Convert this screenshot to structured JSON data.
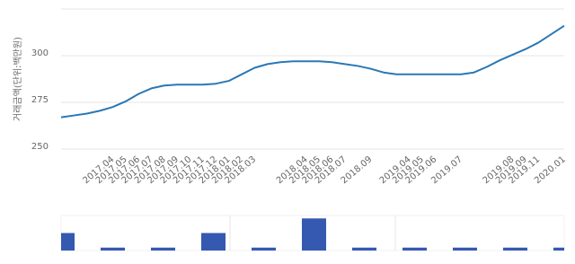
{
  "chart_data": [
    {
      "type": "line",
      "ylabel": "거래금액(단위:백만원)",
      "color": "#2a78b5",
      "categories": [
        null,
        null,
        null,
        null,
        "2017.04",
        "2017.05",
        "2017.06",
        "2017.07",
        "2017.08",
        "2017.09",
        "2017.10",
        "2017.11",
        "2017.12",
        "2018.01",
        "2018.02",
        "2018.03",
        null,
        null,
        null,
        "2018.04",
        "2018.05",
        "2018.06",
        "2018.07",
        null,
        "2018.09",
        null,
        null,
        "2019.04",
        "2019.05",
        "2019.06",
        null,
        "2019.07",
        null,
        null,
        null,
        "2019.08",
        "2019.09",
        "2019.11",
        null,
        "2020.01"
      ],
      "values": [
        267,
        268,
        269,
        270.5,
        272.5,
        275.5,
        279.5,
        282.5,
        284,
        284.5,
        284.5,
        284.5,
        285,
        286.5,
        290,
        293.5,
        295.5,
        296.5,
        297,
        297,
        297,
        296.5,
        295.5,
        294.5,
        293,
        291,
        290,
        290,
        290,
        290,
        290,
        290,
        291,
        294,
        297.5,
        300.5,
        303.5,
        307,
        311.5,
        316
      ],
      "ylim": [
        250,
        325
      ],
      "yticks": [
        250,
        275,
        300
      ],
      "grid": true
    },
    {
      "type": "bar",
      "color": "#3558b0",
      "values": [
        6,
        1,
        1,
        6,
        1,
        11,
        1,
        1,
        1,
        1,
        1
      ],
      "ylim": [
        0,
        12
      ]
    }
  ]
}
